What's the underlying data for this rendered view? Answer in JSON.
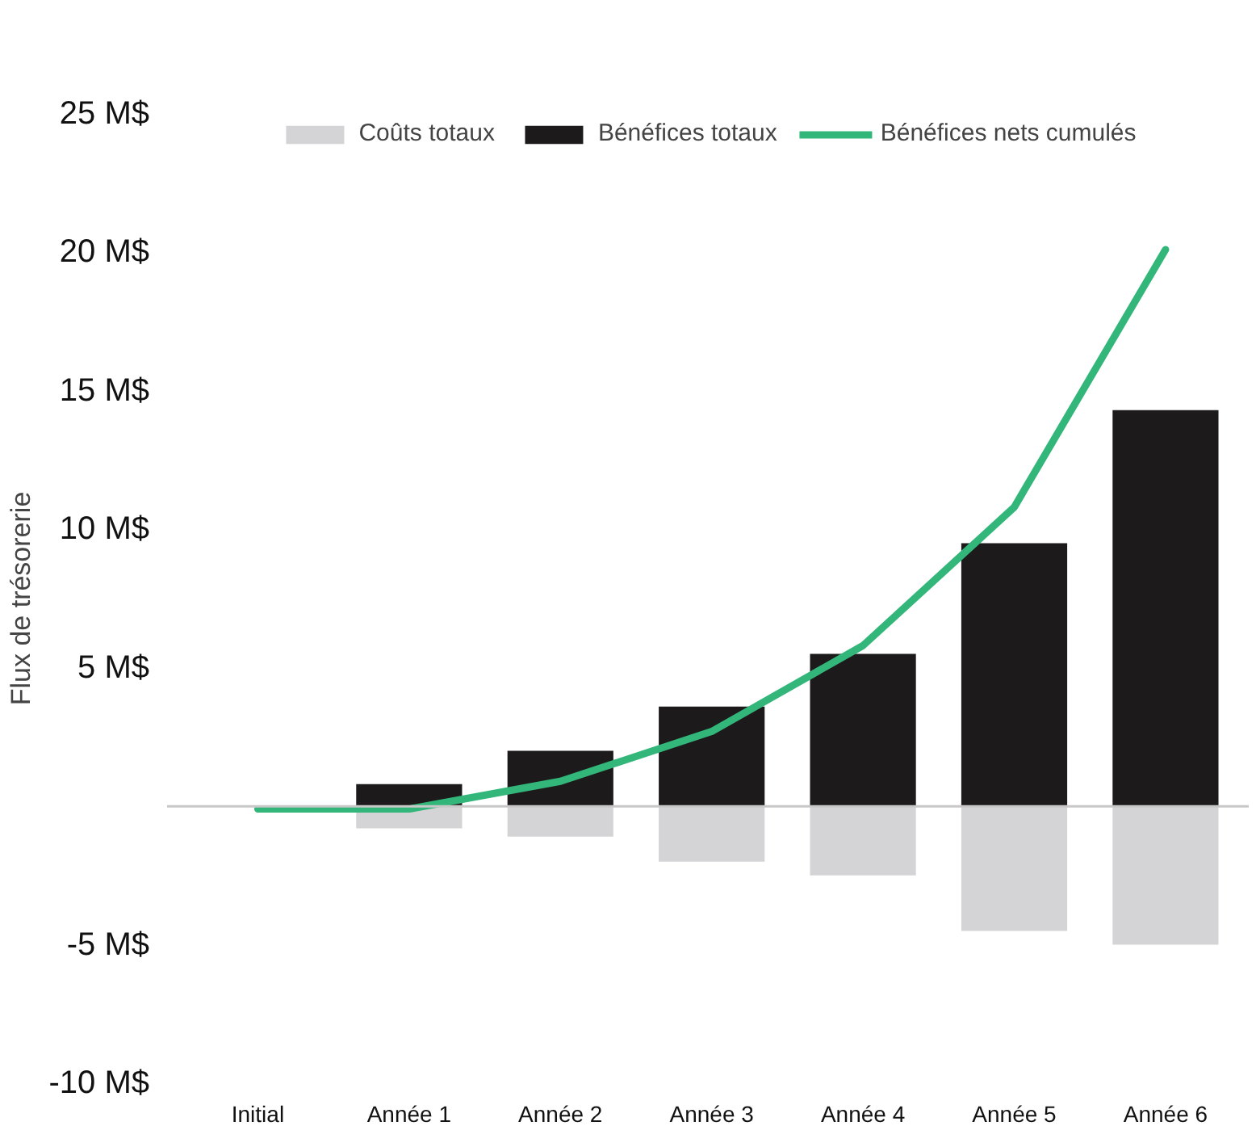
{
  "chart_data": {
    "type": "bar",
    "ylabel": "Flux de trésorerie",
    "categories": [
      "Initial",
      "Année 1",
      "Année 2",
      "Année 3",
      "Année 4",
      "Année 5",
      "Année 6"
    ],
    "stacked": true,
    "series": [
      {
        "name": "Coûts totaux",
        "color": "#d4d4d6",
        "values": [
          null,
          -0.8,
          -1.1,
          -2,
          -2.5,
          -4.5,
          -5.0
        ]
      },
      {
        "name": "Bénéfices totaux",
        "color": "#1c1a1b",
        "values": [
          null,
          0.8,
          2,
          3.6,
          5.5,
          9.5,
          14.3
        ]
      },
      {
        "name": "Bénéfices nets cumulés",
        "type": "line",
        "color": "#33b67a",
        "values": [
          -0.1,
          -0.1,
          0.9,
          2.7,
          5.8,
          10.8,
          20.1
        ]
      }
    ],
    "ylim": [
      -10,
      25
    ],
    "yticks": [
      {
        "value": -10,
        "label": "-10 M$"
      },
      {
        "value": -5,
        "label": "-5 M$"
      },
      {
        "value": 5,
        "label": "5 M$"
      },
      {
        "value": 10,
        "label": "10 M$"
      },
      {
        "value": 15,
        "label": "15 M$"
      },
      {
        "value": 20,
        "label": "20 M$"
      },
      {
        "value": 25,
        "label": "25 M$"
      }
    ],
    "ref_lines": [
      {
        "axis": "y",
        "value": 0,
        "color": "#c8c8c8"
      }
    ],
    "grid": false,
    "legend": "top",
    "marker": "none",
    "line_style": "solid"
  }
}
